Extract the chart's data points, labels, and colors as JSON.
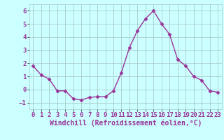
{
  "x": [
    0,
    1,
    2,
    3,
    4,
    5,
    6,
    7,
    8,
    9,
    10,
    11,
    12,
    13,
    14,
    15,
    16,
    17,
    18,
    19,
    20,
    21,
    22,
    23
  ],
  "y": [
    1.8,
    1.1,
    0.8,
    -0.1,
    -0.1,
    -0.7,
    -0.8,
    -0.6,
    -0.55,
    -0.55,
    -0.1,
    1.3,
    3.2,
    4.5,
    5.4,
    6.0,
    5.0,
    4.2,
    2.3,
    1.8,
    1.0,
    0.7,
    -0.1,
    -0.2
  ],
  "line_color": "#993399",
  "marker": "D",
  "markersize": 2.5,
  "linewidth": 1.0,
  "bg_color": "#ccffff",
  "grid_color": "#aacccc",
  "xlabel": "Windchill (Refroidissement éolien,°C)",
  "xlabel_fontsize": 7,
  "tick_fontsize": 6.5,
  "ylim": [
    -1.5,
    6.5
  ],
  "xlim": [
    -0.5,
    23.5
  ],
  "yticks": [
    -1,
    0,
    1,
    2,
    3,
    4,
    5,
    6
  ],
  "xticks": [
    0,
    1,
    2,
    3,
    4,
    5,
    6,
    7,
    8,
    9,
    10,
    11,
    12,
    13,
    14,
    15,
    16,
    17,
    18,
    19,
    20,
    21,
    22,
    23
  ]
}
